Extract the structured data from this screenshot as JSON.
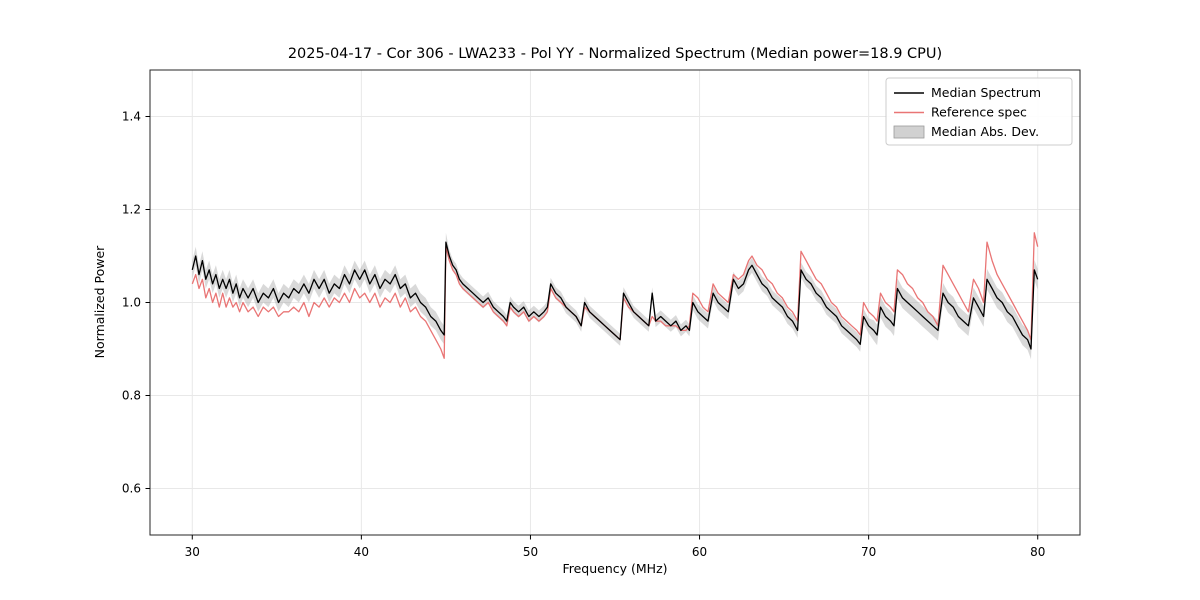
{
  "chart_data": {
    "type": "line",
    "title": "2025-04-17 - Cor 306 - LWA233 - Pol YY - Normalized Spectrum (Median power=18.9 CPU)",
    "xlabel": "Frequency (MHz)",
    "ylabel": "Normalized Power",
    "xlim": [
      27.5,
      82.5
    ],
    "ylim": [
      0.5,
      1.5
    ],
    "xticks": [
      30,
      40,
      50,
      60,
      70,
      80
    ],
    "xtick_labels": [
      "30",
      "40",
      "50",
      "60",
      "70",
      "80"
    ],
    "yticks": [
      0.6,
      0.8,
      1.0,
      1.2,
      1.4
    ],
    "ytick_labels": [
      "0.6",
      "0.8",
      "1.0",
      "1.2",
      "1.4"
    ],
    "grid": true,
    "grid_color": "#e8e8e8",
    "band_color": "#aaaaaa",
    "band_opacity": 0.45,
    "legend_position": "upper right",
    "legend": [
      {
        "label": "Median Spectrum",
        "color": "#000000",
        "sample": "line"
      },
      {
        "label": "Reference spec",
        "color": "#e97575",
        "sample": "line"
      },
      {
        "label": "Median Abs. Dev.",
        "color": "#bdbdbd",
        "sample": "patch"
      }
    ],
    "series_names": [
      "Median Spectrum",
      "Reference spec"
    ],
    "series_colors": [
      "#000000",
      "#e97575"
    ],
    "mad_regions": [
      {
        "from": 27.5,
        "to": 45.0,
        "halfwidth": 0.02
      },
      {
        "from": 45.0,
        "to": 59.5,
        "halfwidth": 0.013
      },
      {
        "from": 59.5,
        "to": 70.0,
        "halfwidth": 0.016
      },
      {
        "from": 70.0,
        "to": 82.5,
        "halfwidth": 0.022
      }
    ],
    "points_format": [
      "freq_mhz",
      "median_spectrum",
      "reference_spec"
    ],
    "points": [
      [
        30.0,
        1.07,
        1.04
      ],
      [
        30.2,
        1.1,
        1.06
      ],
      [
        30.4,
        1.06,
        1.03
      ],
      [
        30.6,
        1.09,
        1.05
      ],
      [
        30.8,
        1.05,
        1.01
      ],
      [
        31.0,
        1.07,
        1.03
      ],
      [
        31.2,
        1.04,
        1.0
      ],
      [
        31.4,
        1.06,
        1.02
      ],
      [
        31.6,
        1.03,
        0.99
      ],
      [
        31.8,
        1.05,
        1.02
      ],
      [
        32.0,
        1.03,
        0.99
      ],
      [
        32.2,
        1.05,
        1.01
      ],
      [
        32.4,
        1.02,
        0.99
      ],
      [
        32.6,
        1.04,
        1.0
      ],
      [
        32.8,
        1.01,
        0.98
      ],
      [
        33.0,
        1.03,
        1.0
      ],
      [
        33.3,
        1.01,
        0.98
      ],
      [
        33.6,
        1.03,
        0.99
      ],
      [
        33.9,
        1.0,
        0.97
      ],
      [
        34.2,
        1.02,
        0.99
      ],
      [
        34.5,
        1.01,
        0.98
      ],
      [
        34.8,
        1.03,
        0.99
      ],
      [
        35.1,
        1.0,
        0.97
      ],
      [
        35.4,
        1.02,
        0.98
      ],
      [
        35.7,
        1.01,
        0.98
      ],
      [
        36.0,
        1.03,
        0.99
      ],
      [
        36.3,
        1.02,
        0.98
      ],
      [
        36.6,
        1.04,
        1.0
      ],
      [
        36.9,
        1.02,
        0.97
      ],
      [
        37.2,
        1.05,
        1.0
      ],
      [
        37.5,
        1.03,
        0.99
      ],
      [
        37.8,
        1.05,
        1.01
      ],
      [
        38.1,
        1.02,
        0.99
      ],
      [
        38.4,
        1.04,
        1.01
      ],
      [
        38.7,
        1.03,
        1.0
      ],
      [
        39.0,
        1.06,
        1.02
      ],
      [
        39.3,
        1.04,
        1.0
      ],
      [
        39.6,
        1.07,
        1.03
      ],
      [
        39.9,
        1.05,
        1.01
      ],
      [
        40.2,
        1.07,
        1.02
      ],
      [
        40.5,
        1.04,
        1.0
      ],
      [
        40.8,
        1.06,
        1.02
      ],
      [
        41.1,
        1.03,
        0.99
      ],
      [
        41.4,
        1.05,
        1.01
      ],
      [
        41.7,
        1.04,
        1.0
      ],
      [
        42.0,
        1.06,
        1.02
      ],
      [
        42.3,
        1.03,
        0.99
      ],
      [
        42.6,
        1.04,
        1.01
      ],
      [
        42.9,
        1.01,
        0.98
      ],
      [
        43.2,
        1.02,
        0.99
      ],
      [
        43.5,
        1.0,
        0.97
      ],
      [
        43.8,
        0.99,
        0.96
      ],
      [
        44.1,
        0.97,
        0.94
      ],
      [
        44.4,
        0.96,
        0.92
      ],
      [
        44.7,
        0.94,
        0.9
      ],
      [
        44.9,
        0.93,
        0.88
      ],
      [
        45.0,
        1.13,
        1.12
      ],
      [
        45.2,
        1.1,
        1.09
      ],
      [
        45.4,
        1.08,
        1.07
      ],
      [
        45.6,
        1.07,
        1.06
      ],
      [
        45.8,
        1.05,
        1.04
      ],
      [
        46.0,
        1.04,
        1.03
      ],
      [
        46.3,
        1.03,
        1.02
      ],
      [
        46.6,
        1.02,
        1.01
      ],
      [
        46.9,
        1.01,
        1.0
      ],
      [
        47.2,
        1.0,
        0.99
      ],
      [
        47.5,
        1.01,
        1.0
      ],
      [
        47.8,
        0.99,
        0.98
      ],
      [
        48.1,
        0.98,
        0.97
      ],
      [
        48.4,
        0.97,
        0.96
      ],
      [
        48.6,
        0.96,
        0.95
      ],
      [
        48.8,
        1.0,
        0.99
      ],
      [
        49.0,
        0.99,
        0.98
      ],
      [
        49.3,
        0.98,
        0.97
      ],
      [
        49.6,
        0.99,
        0.98
      ],
      [
        49.9,
        0.97,
        0.96
      ],
      [
        50.2,
        0.98,
        0.97
      ],
      [
        50.5,
        0.97,
        0.96
      ],
      [
        50.8,
        0.98,
        0.97
      ],
      [
        51.0,
        0.99,
        0.98
      ],
      [
        51.2,
        1.04,
        1.03
      ],
      [
        51.5,
        1.02,
        1.01
      ],
      [
        51.8,
        1.01,
        1.0
      ],
      [
        52.1,
        0.99,
        0.99
      ],
      [
        52.4,
        0.98,
        0.98
      ],
      [
        52.7,
        0.97,
        0.97
      ],
      [
        53.0,
        0.95,
        0.95
      ],
      [
        53.2,
        1.0,
        0.99
      ],
      [
        53.5,
        0.98,
        0.98
      ],
      [
        53.8,
        0.97,
        0.97
      ],
      [
        54.1,
        0.96,
        0.96
      ],
      [
        54.4,
        0.95,
        0.95
      ],
      [
        54.7,
        0.94,
        0.94
      ],
      [
        55.0,
        0.93,
        0.93
      ],
      [
        55.3,
        0.92,
        0.92
      ],
      [
        55.5,
        1.02,
        1.01
      ],
      [
        55.8,
        1.0,
        0.99
      ],
      [
        56.1,
        0.98,
        0.98
      ],
      [
        56.4,
        0.97,
        0.97
      ],
      [
        56.7,
        0.96,
        0.96
      ],
      [
        57.0,
        0.95,
        0.95
      ],
      [
        57.2,
        1.02,
        0.97
      ],
      [
        57.4,
        0.96,
        0.96
      ],
      [
        57.7,
        0.97,
        0.96
      ],
      [
        58.0,
        0.96,
        0.95
      ],
      [
        58.3,
        0.95,
        0.95
      ],
      [
        58.6,
        0.96,
        0.95
      ],
      [
        58.9,
        0.94,
        0.94
      ],
      [
        59.2,
        0.95,
        0.94
      ],
      [
        59.4,
        0.94,
        0.95
      ],
      [
        59.6,
        1.0,
        1.02
      ],
      [
        59.9,
        0.98,
        1.01
      ],
      [
        60.2,
        0.97,
        0.99
      ],
      [
        60.5,
        0.96,
        0.98
      ],
      [
        60.8,
        1.02,
        1.04
      ],
      [
        61.1,
        1.0,
        1.02
      ],
      [
        61.4,
        0.99,
        1.01
      ],
      [
        61.7,
        0.98,
        1.0
      ],
      [
        62.0,
        1.05,
        1.06
      ],
      [
        62.3,
        1.03,
        1.05
      ],
      [
        62.6,
        1.04,
        1.06
      ],
      [
        62.9,
        1.07,
        1.09
      ],
      [
        63.1,
        1.08,
        1.1
      ],
      [
        63.4,
        1.06,
        1.08
      ],
      [
        63.7,
        1.04,
        1.07
      ],
      [
        64.0,
        1.03,
        1.05
      ],
      [
        64.3,
        1.01,
        1.04
      ],
      [
        64.6,
        1.0,
        1.02
      ],
      [
        64.9,
        0.99,
        1.01
      ],
      [
        65.2,
        0.97,
        0.99
      ],
      [
        65.5,
        0.96,
        0.98
      ],
      [
        65.8,
        0.94,
        0.96
      ],
      [
        66.0,
        1.07,
        1.11
      ],
      [
        66.3,
        1.05,
        1.09
      ],
      [
        66.6,
        1.04,
        1.07
      ],
      [
        66.9,
        1.02,
        1.05
      ],
      [
        67.2,
        1.01,
        1.04
      ],
      [
        67.5,
        0.99,
        1.02
      ],
      [
        67.8,
        0.98,
        1.0
      ],
      [
        68.1,
        0.97,
        0.99
      ],
      [
        68.4,
        0.95,
        0.97
      ],
      [
        68.7,
        0.94,
        0.96
      ],
      [
        69.0,
        0.93,
        0.95
      ],
      [
        69.3,
        0.92,
        0.94
      ],
      [
        69.5,
        0.91,
        0.93
      ],
      [
        69.7,
        0.97,
        1.0
      ],
      [
        70.0,
        0.95,
        0.98
      ],
      [
        70.3,
        0.94,
        0.97
      ],
      [
        70.5,
        0.93,
        0.96
      ],
      [
        70.7,
        0.99,
        1.02
      ],
      [
        71.0,
        0.97,
        1.0
      ],
      [
        71.3,
        0.96,
        0.99
      ],
      [
        71.5,
        0.95,
        0.98
      ],
      [
        71.7,
        1.03,
        1.07
      ],
      [
        72.0,
        1.01,
        1.06
      ],
      [
        72.3,
        1.0,
        1.04
      ],
      [
        72.6,
        0.99,
        1.03
      ],
      [
        72.9,
        0.98,
        1.01
      ],
      [
        73.2,
        0.97,
        1.0
      ],
      [
        73.5,
        0.96,
        0.98
      ],
      [
        73.8,
        0.95,
        0.97
      ],
      [
        74.1,
        0.94,
        0.95
      ],
      [
        74.4,
        1.02,
        1.08
      ],
      [
        74.7,
        1.0,
        1.06
      ],
      [
        75.0,
        0.99,
        1.04
      ],
      [
        75.3,
        0.97,
        1.02
      ],
      [
        75.6,
        0.96,
        1.0
      ],
      [
        75.9,
        0.95,
        0.98
      ],
      [
        76.2,
        1.01,
        1.05
      ],
      [
        76.5,
        0.99,
        1.03
      ],
      [
        76.8,
        0.97,
        1.0
      ],
      [
        77.0,
        1.05,
        1.13
      ],
      [
        77.3,
        1.03,
        1.09
      ],
      [
        77.6,
        1.01,
        1.06
      ],
      [
        77.9,
        1.0,
        1.04
      ],
      [
        78.2,
        0.98,
        1.02
      ],
      [
        78.5,
        0.97,
        1.0
      ],
      [
        78.8,
        0.95,
        0.98
      ],
      [
        79.1,
        0.93,
        0.96
      ],
      [
        79.4,
        0.92,
        0.94
      ],
      [
        79.6,
        0.9,
        0.92
      ],
      [
        79.8,
        1.07,
        1.15
      ],
      [
        80.0,
        1.05,
        1.12
      ]
    ]
  }
}
